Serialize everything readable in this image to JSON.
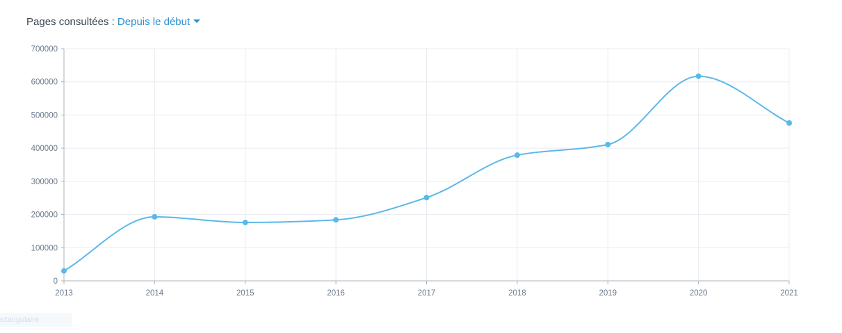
{
  "header": {
    "title": "Pages consultées :",
    "filter_label": "Depuis le début"
  },
  "bottom_tag": {
    "label": "Rectangulaire"
  },
  "colors": {
    "series": "#5bb8ea",
    "grid": "#e8ecf0",
    "axis": "#aab4c0",
    "tick_text": "#6b7a8c",
    "filter": "#2a8fd0"
  },
  "chart_data": {
    "type": "line",
    "smooth": true,
    "grid": true,
    "x": [
      "2013",
      "2014",
      "2015",
      "2016",
      "2017",
      "2018",
      "2019",
      "2020",
      "2021"
    ],
    "series": [
      {
        "values": [
          30000,
          193000,
          176000,
          184000,
          251000,
          379000,
          411000,
          617000,
          476000
        ]
      }
    ],
    "ylim": [
      0,
      700000
    ],
    "yticks": [
      "0",
      "100000",
      "200000",
      "300000",
      "400000",
      "500000",
      "600000",
      "700000"
    ]
  }
}
